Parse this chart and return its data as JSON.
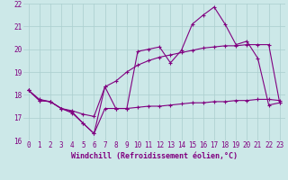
{
  "xlabel": "Windchill (Refroidissement éolien,°C)",
  "bg_color": "#cce8e8",
  "line_color": "#800080",
  "x": [
    0,
    1,
    2,
    3,
    4,
    5,
    6,
    7,
    8,
    9,
    10,
    11,
    12,
    13,
    14,
    15,
    16,
    17,
    18,
    19,
    20,
    21,
    22,
    23
  ],
  "windchill": [
    18.2,
    17.8,
    17.7,
    17.4,
    17.2,
    16.75,
    16.3,
    18.35,
    17.4,
    17.4,
    19.9,
    20.0,
    20.1,
    19.4,
    19.95,
    21.1,
    21.5,
    21.85,
    21.1,
    20.2,
    20.35,
    19.6,
    17.55,
    17.65
  ],
  "temp_min": [
    18.2,
    17.75,
    17.7,
    17.4,
    17.25,
    16.75,
    16.3,
    17.4,
    17.4,
    17.4,
    17.45,
    17.5,
    17.5,
    17.55,
    17.6,
    17.65,
    17.65,
    17.7,
    17.7,
    17.75,
    17.75,
    17.8,
    17.8,
    17.75
  ],
  "temp_max": [
    18.2,
    17.75,
    17.7,
    17.4,
    17.3,
    17.15,
    17.05,
    18.35,
    18.6,
    19.0,
    19.3,
    19.5,
    19.65,
    19.75,
    19.85,
    19.95,
    20.05,
    20.1,
    20.15,
    20.15,
    20.2,
    20.2,
    20.2,
    17.65
  ],
  "ylim": [
    16,
    22
  ],
  "yticks": [
    16,
    17,
    18,
    19,
    20,
    21,
    22
  ],
  "grid_color": "#aacece",
  "marker": "+",
  "marker_size": 3,
  "linewidth": 0.8,
  "tick_fontsize": 5.5,
  "xlabel_fontsize": 6.0
}
